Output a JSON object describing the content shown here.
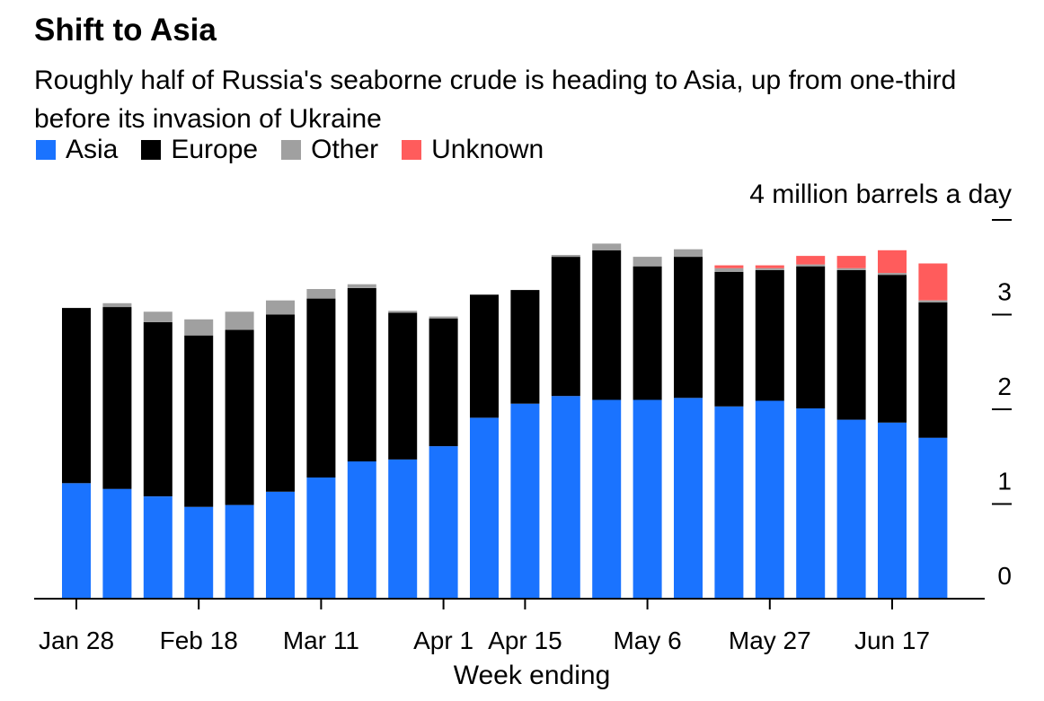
{
  "title": "Shift to Asia",
  "subtitle": "Roughly half of Russia's seaborne crude is heading to Asia, up from one-third before its invasion of Ukraine",
  "unit_label": "4 million barrels a day",
  "x_axis_title": "Week ending",
  "colors": {
    "Asia": "#1a73ff",
    "Europe": "#000000",
    "Other": "#a0a0a0",
    "Unknown": "#ff5c5c"
  },
  "chart_data": {
    "type": "bar",
    "stacked": true,
    "title": "Shift to Asia",
    "xlabel": "Week ending",
    "ylabel": "4 million barrels a day",
    "ylim": [
      0,
      4
    ],
    "y_ticks": [
      0,
      1,
      2,
      3,
      4
    ],
    "y_tick_labels": [
      "0",
      "1",
      "2",
      "3",
      ""
    ],
    "x_tick_labels": [
      "Jan 28",
      "Feb 18",
      "Mar 11",
      "Apr 1",
      "Apr 15",
      "May 6",
      "May 27",
      "Jun 17"
    ],
    "x_tick_positions": [
      0,
      3,
      6,
      9,
      11,
      14,
      17,
      20
    ],
    "legend": [
      "Asia",
      "Europe",
      "Other",
      "Unknown"
    ],
    "legend_position": "top-left",
    "grid": false,
    "categories": [
      "Jan 28",
      "Feb 4",
      "Feb 11",
      "Feb 18",
      "Feb 25",
      "Mar 4",
      "Mar 11",
      "Mar 18",
      "Mar 25",
      "Apr 1",
      "Apr 8",
      "Apr 15",
      "Apr 22",
      "Apr 29",
      "May 6",
      "May 13",
      "May 20",
      "May 27",
      "Jun 3",
      "Jun 10",
      "Jun 17",
      "Jun 24"
    ],
    "series": [
      {
        "name": "Asia",
        "values": [
          1.22,
          1.16,
          1.08,
          0.97,
          0.99,
          1.13,
          1.28,
          1.45,
          1.47,
          1.61,
          1.91,
          2.06,
          2.14,
          2.1,
          2.1,
          2.12,
          2.03,
          2.09,
          2.01,
          1.89,
          1.86,
          1.7
        ]
      },
      {
        "name": "Europe",
        "values": [
          1.85,
          1.92,
          1.84,
          1.81,
          1.85,
          1.87,
          1.89,
          1.83,
          1.55,
          1.35,
          1.3,
          1.2,
          1.47,
          1.58,
          1.41,
          1.49,
          1.42,
          1.38,
          1.5,
          1.58,
          1.56,
          1.43
        ]
      },
      {
        "name": "Other",
        "values": [
          0.0,
          0.04,
          0.11,
          0.17,
          0.19,
          0.15,
          0.1,
          0.04,
          0.02,
          0.02,
          0.0,
          0.0,
          0.02,
          0.07,
          0.1,
          0.08,
          0.04,
          0.02,
          0.02,
          0.02,
          0.02,
          0.02
        ]
      },
      {
        "name": "Unknown",
        "values": [
          0,
          0,
          0,
          0,
          0,
          0,
          0,
          0,
          0,
          0,
          0,
          0,
          0,
          0,
          0,
          0,
          0.03,
          0.03,
          0.09,
          0.13,
          0.24,
          0.39
        ]
      }
    ]
  }
}
